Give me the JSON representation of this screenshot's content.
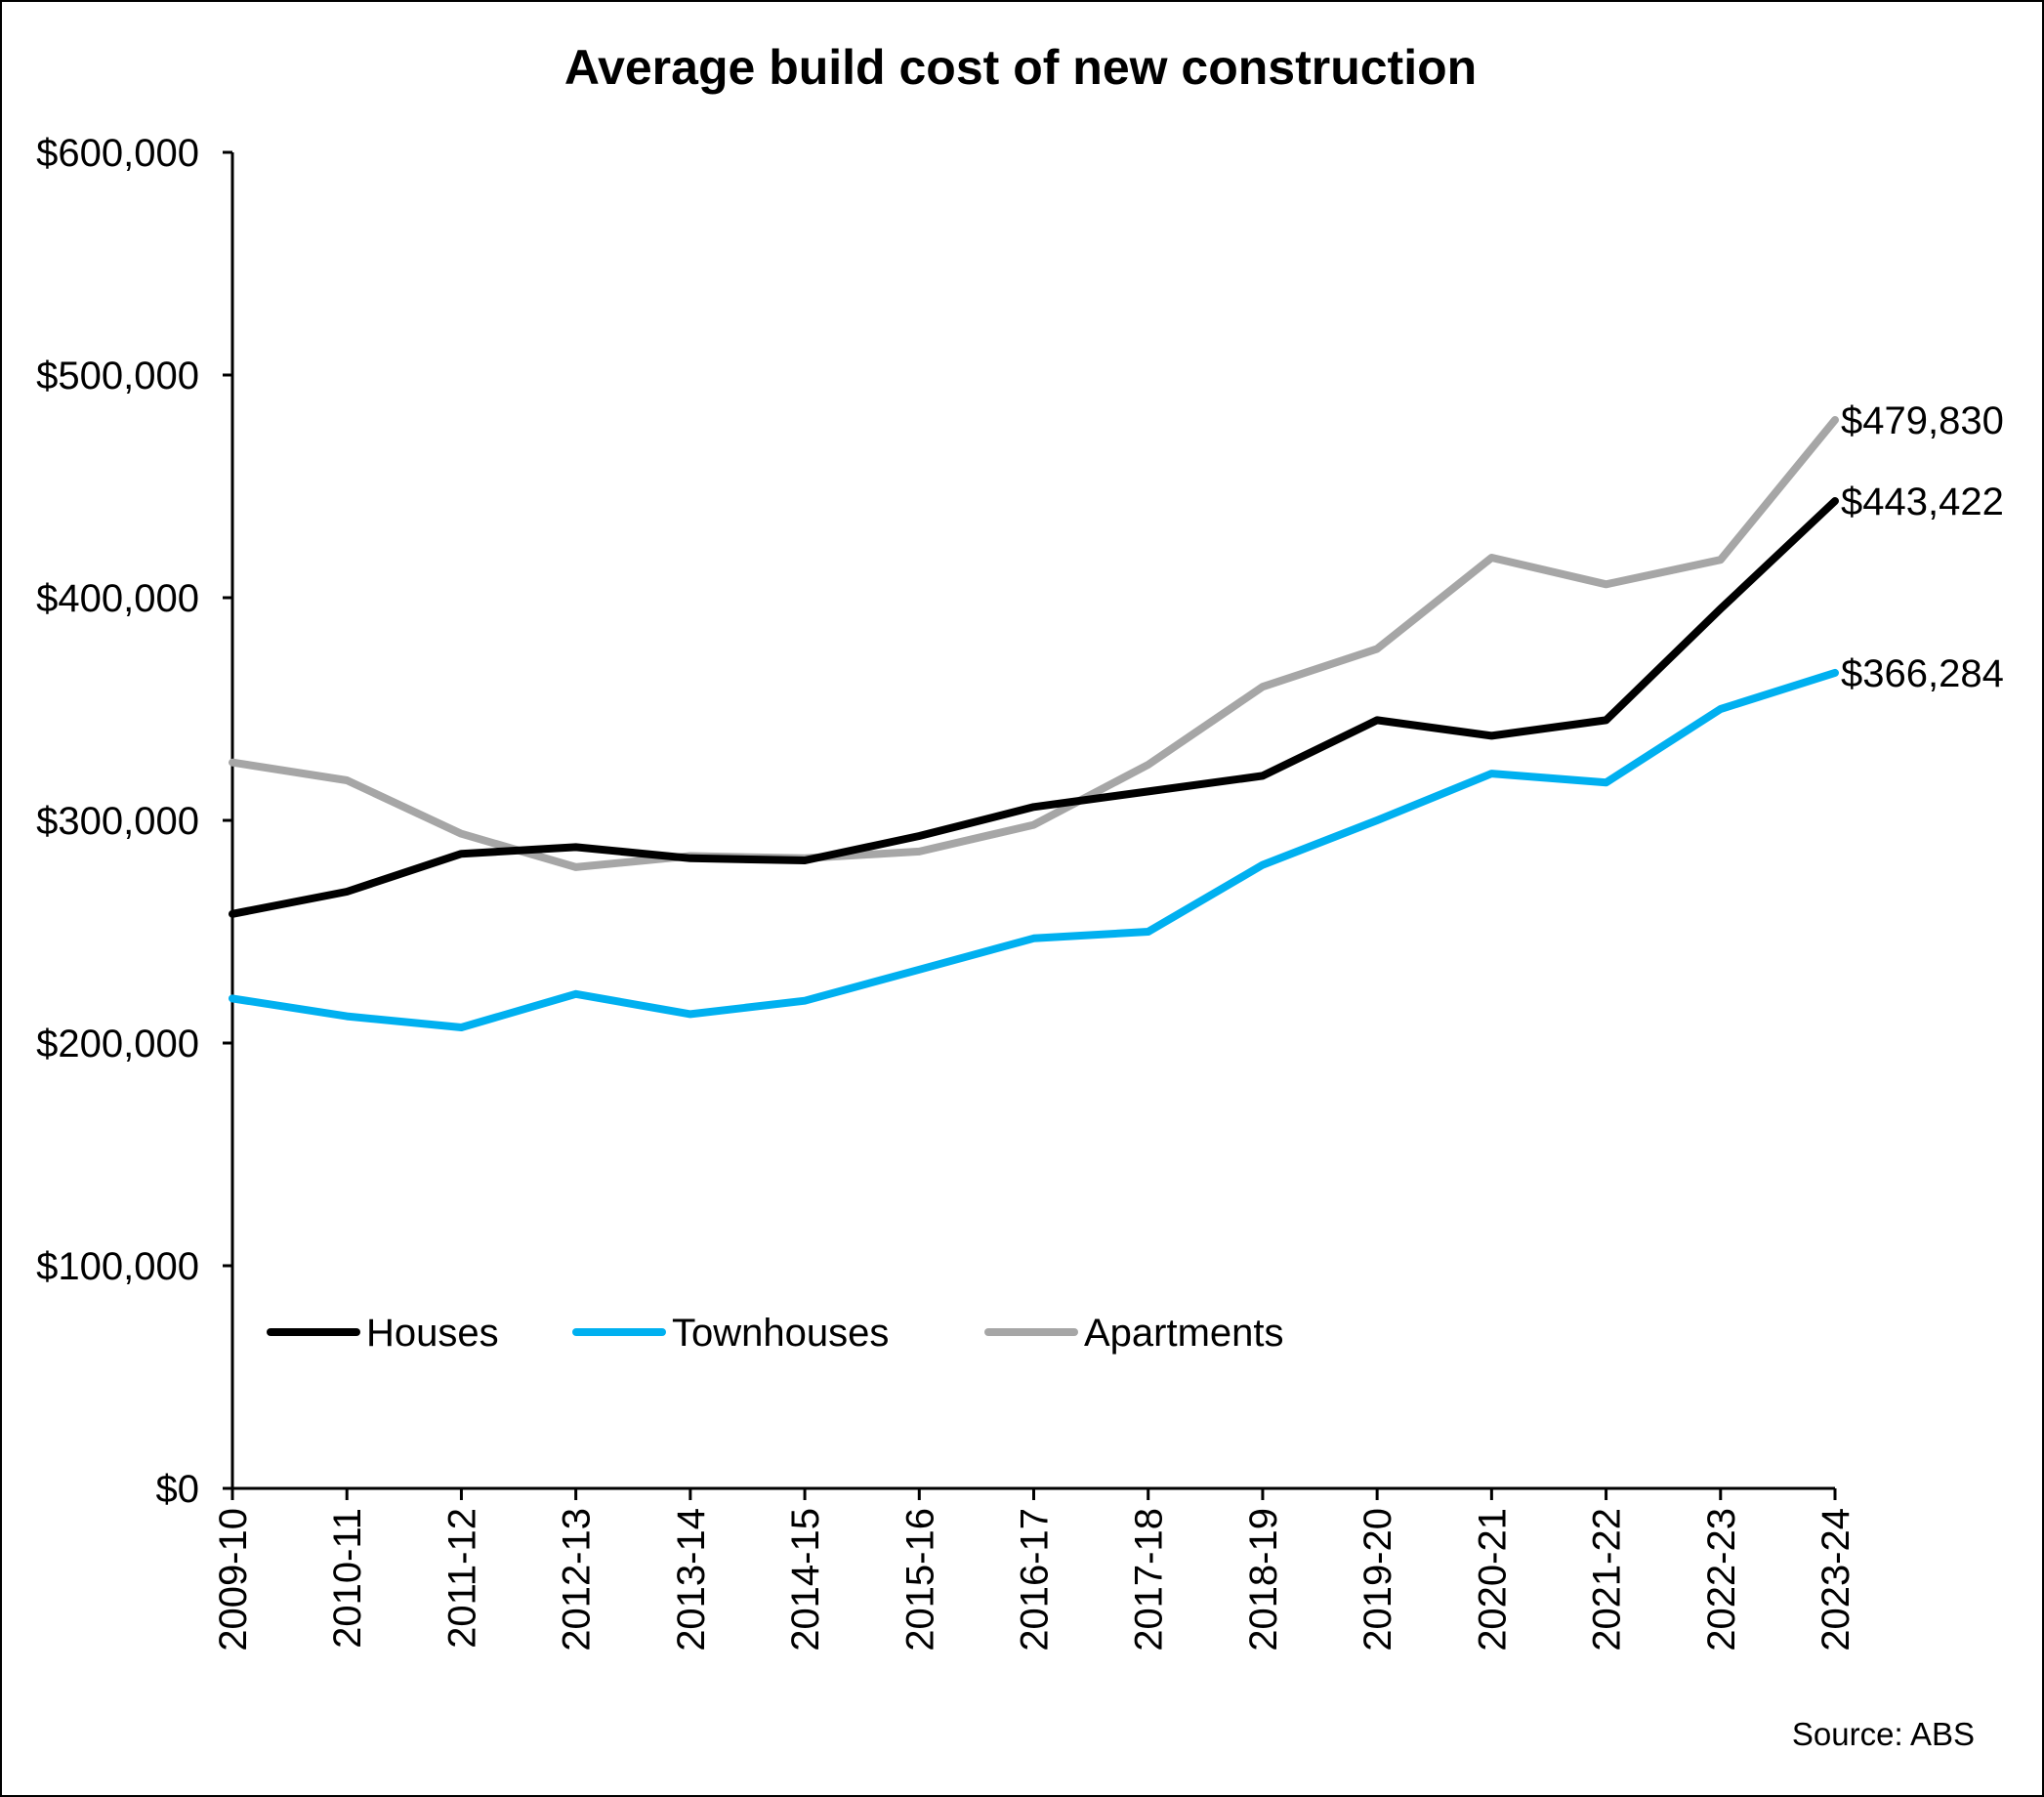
{
  "chart_data": {
    "type": "line",
    "title": "Average build cost of new construction",
    "xlabel": "",
    "ylabel": "",
    "x": [
      "2009-10",
      "2010-11",
      "2011-12",
      "2012-13",
      "2013-14",
      "2014-15",
      "2015-16",
      "2016-17",
      "2017-18",
      "2018-19",
      "2019-20",
      "2020-21",
      "2021-22",
      "2022-23",
      "2023-24"
    ],
    "ylim": [
      0,
      600000
    ],
    "y_ticks": [
      0,
      100000,
      200000,
      300000,
      400000,
      500000,
      600000
    ],
    "y_tick_labels": [
      "$0",
      "$100,000",
      "$200,000",
      "$300,000",
      "$400,000",
      "$500,000",
      "$600,000"
    ],
    "grid": false,
    "legend_position": "bottom-left",
    "series": [
      {
        "name": "Houses",
        "color": "#000000",
        "values": [
          258000,
          268000,
          285000,
          288000,
          283000,
          282000,
          293000,
          306000,
          313000,
          320000,
          345000,
          338000,
          345000,
          395000,
          443422
        ],
        "end_label": "$443,422"
      },
      {
        "name": "Townhouses",
        "color": "#00B0F0",
        "values": [
          220000,
          212000,
          207000,
          222000,
          213000,
          219000,
          233000,
          247000,
          250000,
          280000,
          300000,
          321000,
          317000,
          350000,
          366284
        ],
        "end_label": "$366,284"
      },
      {
        "name": "Apartments",
        "color": "#A6A6A6",
        "values": [
          326000,
          318000,
          294000,
          279000,
          284000,
          283000,
          286000,
          298000,
          325000,
          360000,
          377000,
          418000,
          406000,
          417000,
          479830
        ],
        "end_label": "$479,830"
      }
    ],
    "source": "Source: ABS"
  }
}
